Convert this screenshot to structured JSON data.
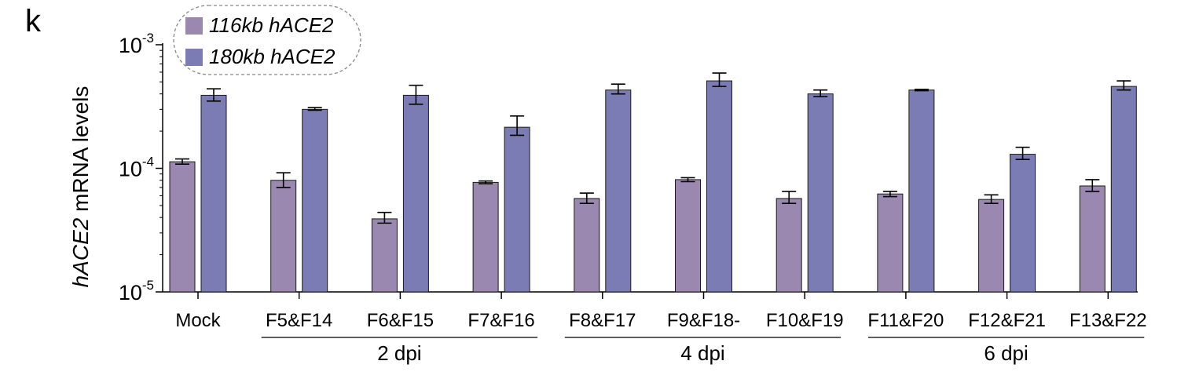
{
  "panel_label": "k",
  "chart_data": {
    "type": "bar",
    "ylabel_prefix": "hACE2",
    "ylabel_suffix": " mRNA levels",
    "yscale": "log",
    "ylim": [
      1e-05,
      0.001
    ],
    "yticks": [
      {
        "value": 1e-05,
        "base": "10",
        "exp": "-5"
      },
      {
        "value": 0.0001,
        "base": "10",
        "exp": "-4"
      },
      {
        "value": 0.001,
        "base": "10",
        "exp": "-3"
      }
    ],
    "categories": [
      "Mock",
      "F5&F14",
      "F6&F15",
      "F7&F16",
      "F8&F17",
      "F9&F18-",
      "F10&F19",
      "F11&F20",
      "F12&F21",
      "F13&F22"
    ],
    "series": [
      {
        "name": "116kb hACE2",
        "color": "#9b88b1",
        "values": [
          0.000113,
          8e-05,
          3.9e-05,
          7.7e-05,
          5.7e-05,
          8.1e-05,
          5.7e-05,
          6.2e-05,
          5.6e-05,
          7.2e-05
        ],
        "err_low": [
          0.000108,
          7e-05,
          3.6e-05,
          7.5e-05,
          5.2e-05,
          7.8e-05,
          5.2e-05,
          5.9e-05,
          5.2e-05,
          6.5e-05
        ],
        "err_high": [
          0.000119,
          9.2e-05,
          4.4e-05,
          7.9e-05,
          6.3e-05,
          8.4e-05,
          6.5e-05,
          6.5e-05,
          6.1e-05,
          8.1e-05
        ]
      },
      {
        "name": "180kb hACE2",
        "color": "#7b7cb3",
        "values": [
          0.00039,
          0.0003,
          0.00039,
          0.000215,
          0.00043,
          0.00051,
          0.0004,
          0.00043,
          0.00013,
          0.00046
        ],
        "err_low": [
          0.00035,
          0.000295,
          0.00033,
          0.000185,
          0.0004,
          0.00046,
          0.00038,
          0.000425,
          0.000118,
          0.00043
        ],
        "err_high": [
          0.00044,
          0.00031,
          0.00047,
          0.000265,
          0.00048,
          0.00059,
          0.00043,
          0.000435,
          0.000148,
          0.00051
        ]
      }
    ],
    "groups": [
      {
        "label": "2 dpi",
        "start": 1,
        "end": 3
      },
      {
        "label": "4 dpi",
        "start": 4,
        "end": 6
      },
      {
        "label": "6 dpi",
        "start": 7,
        "end": 9
      }
    ],
    "legend_position": "top-left",
    "grid": false
  }
}
